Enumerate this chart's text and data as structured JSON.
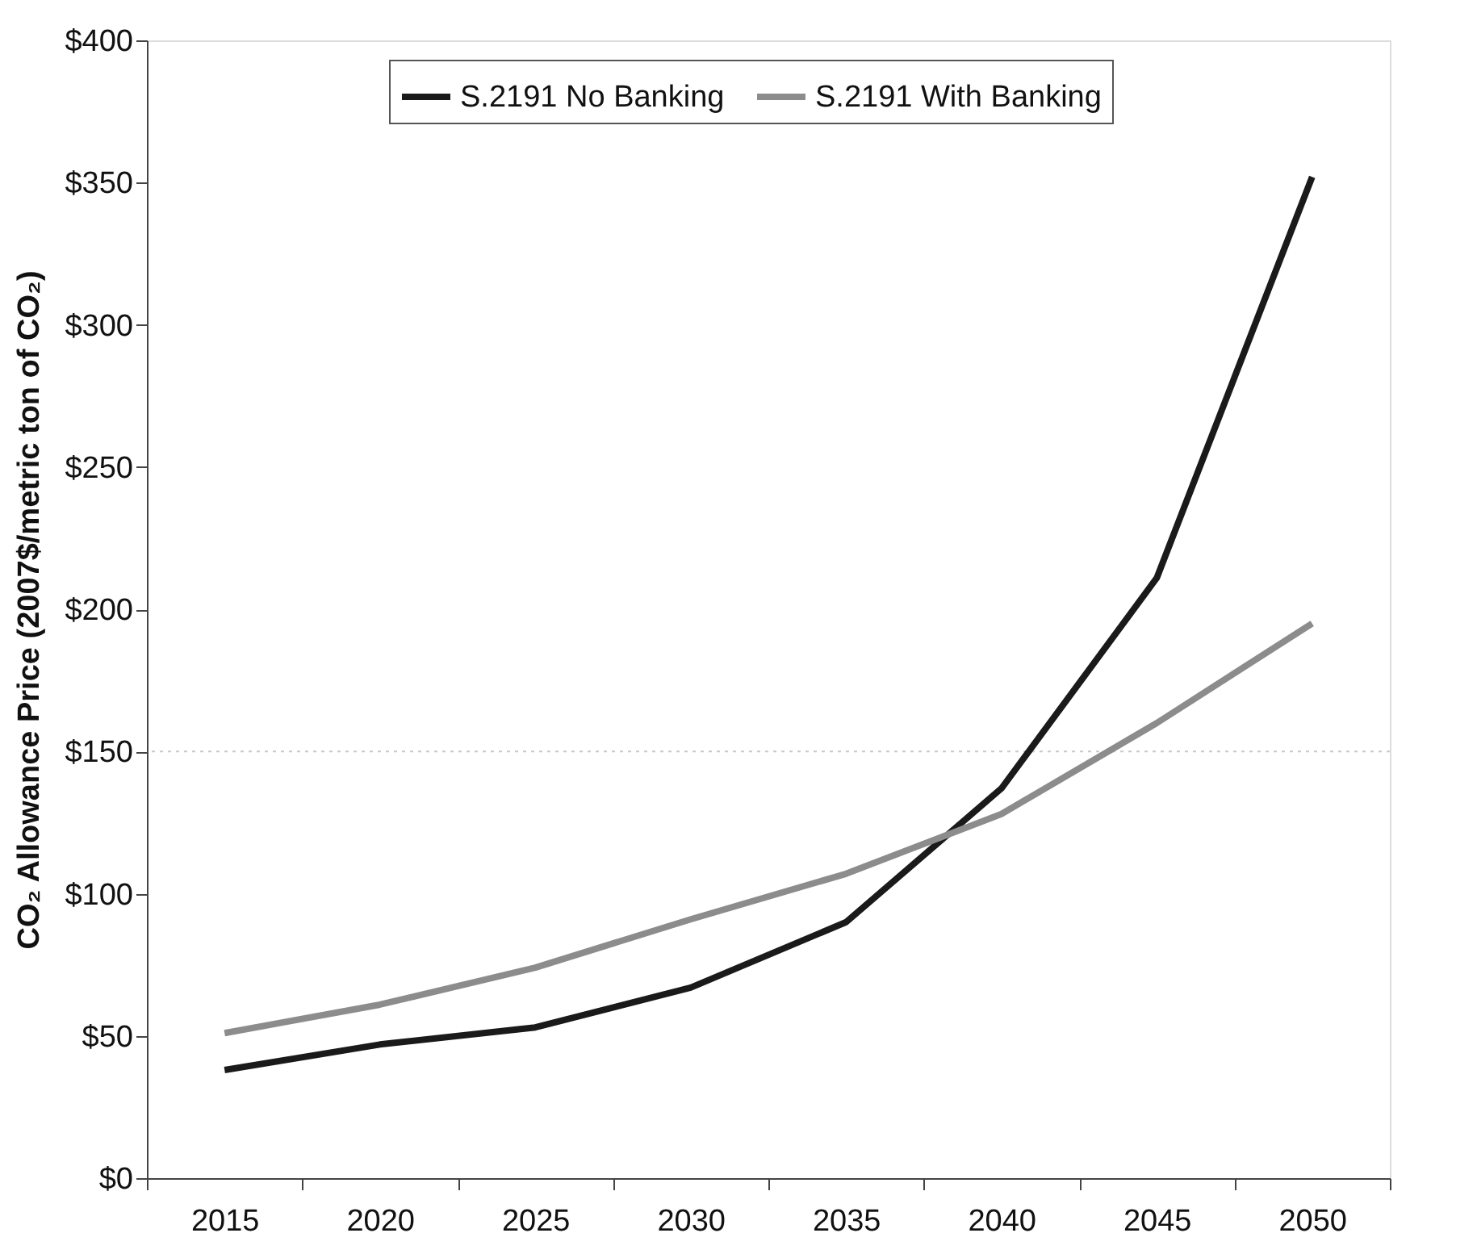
{
  "chart_data": {
    "type": "line",
    "ylabel": "CO₂ Allowance Price (2007$/metric ton of CO₂)",
    "categories": [
      "2015",
      "2020",
      "2025",
      "2030",
      "2035",
      "2040",
      "2045",
      "2050"
    ],
    "series": [
      {
        "name": "S.2191 No Banking",
        "color": "#1a1a1a",
        "values": [
          38,
          47,
          53,
          67,
          90,
          137,
          211,
          352
        ]
      },
      {
        "name": "S.2191 With Banking",
        "color": "#8c8c8c",
        "values": [
          51,
          61,
          74,
          91,
          107,
          128,
          160,
          195
        ]
      }
    ],
    "ylim": [
      0,
      400
    ],
    "yticks": [
      {
        "value": 0,
        "label": "$0"
      },
      {
        "value": 50,
        "label": "$50"
      },
      {
        "value": 100,
        "label": "$100"
      },
      {
        "value": 150,
        "label": "$150"
      },
      {
        "value": 200,
        "label": "$200"
      },
      {
        "value": 250,
        "label": "$250"
      },
      {
        "value": 300,
        "label": "$300"
      },
      {
        "value": 350,
        "label": "$350"
      },
      {
        "value": 400,
        "label": "$400"
      }
    ],
    "ref_lines": [
      {
        "axis": "y",
        "value": 150,
        "color": "#c8c8c8",
        "line_style": "dotted"
      }
    ],
    "grid": false,
    "legend": "top",
    "marker": "none",
    "line_style": "solid"
  }
}
